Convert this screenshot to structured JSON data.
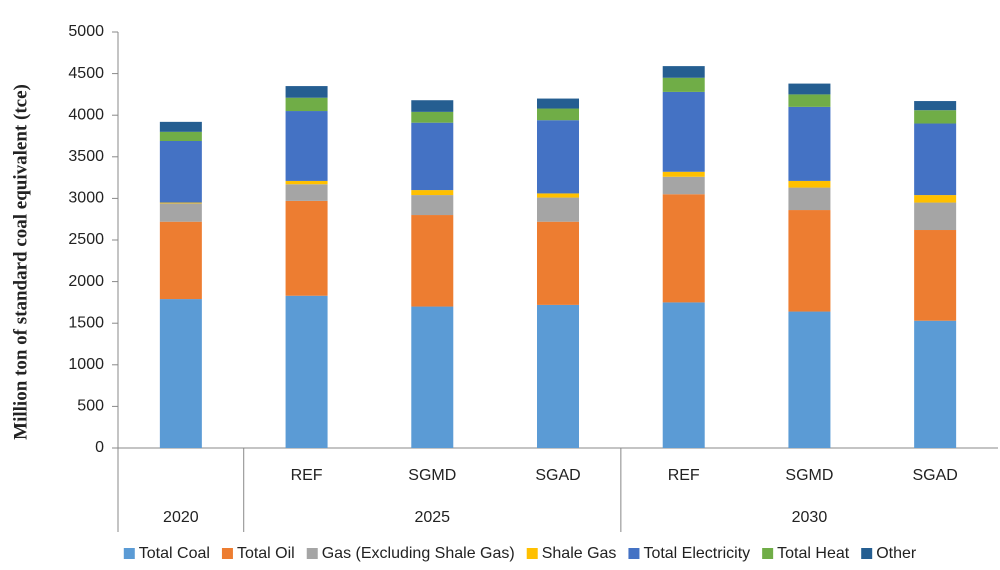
{
  "chart_data": {
    "type": "stacked_bar",
    "ylabel": "Million ton of standard coal equivalent (tce)",
    "groups": [
      {
        "label": "2020",
        "categories": [
          null
        ]
      },
      {
        "label": "2025",
        "categories": [
          "REF",
          "SGMD",
          "SGAD"
        ]
      },
      {
        "label": "2030",
        "categories": [
          "REF",
          "SGMD",
          "SGAD"
        ]
      }
    ],
    "series": [
      {
        "name": "Total Coal",
        "color": "#5b9bd5",
        "values": [
          1790,
          1830,
          1700,
          1720,
          1750,
          1640,
          1530
        ]
      },
      {
        "name": "Total Oil",
        "color": "#ed7d31",
        "values": [
          930,
          1140,
          1100,
          1000,
          1300,
          1220,
          1090
        ]
      },
      {
        "name": "Gas (Excluding Shale Gas)",
        "color": "#a5a5a5",
        "values": [
          220,
          200,
          240,
          290,
          210,
          270,
          330
        ]
      },
      {
        "name": "Shale Gas",
        "color": "#ffc000",
        "values": [
          10,
          40,
          60,
          50,
          60,
          80,
          90
        ]
      },
      {
        "name": "Total Electricity",
        "color": "#4472c4",
        "values": [
          740,
          840,
          810,
          880,
          960,
          890,
          860
        ]
      },
      {
        "name": "Total Heat",
        "color": "#70ad47",
        "values": [
          110,
          160,
          130,
          140,
          170,
          150,
          160
        ]
      },
      {
        "name": "Other",
        "color": "#255e91",
        "values": [
          120,
          140,
          140,
          120,
          140,
          130,
          110
        ]
      }
    ],
    "ylim": [
      0,
      5000
    ],
    "yticks": [
      0,
      500,
      1000,
      1500,
      2000,
      2500,
      3000,
      3500,
      4000,
      4500,
      5000
    ],
    "legend": "bottom"
  }
}
